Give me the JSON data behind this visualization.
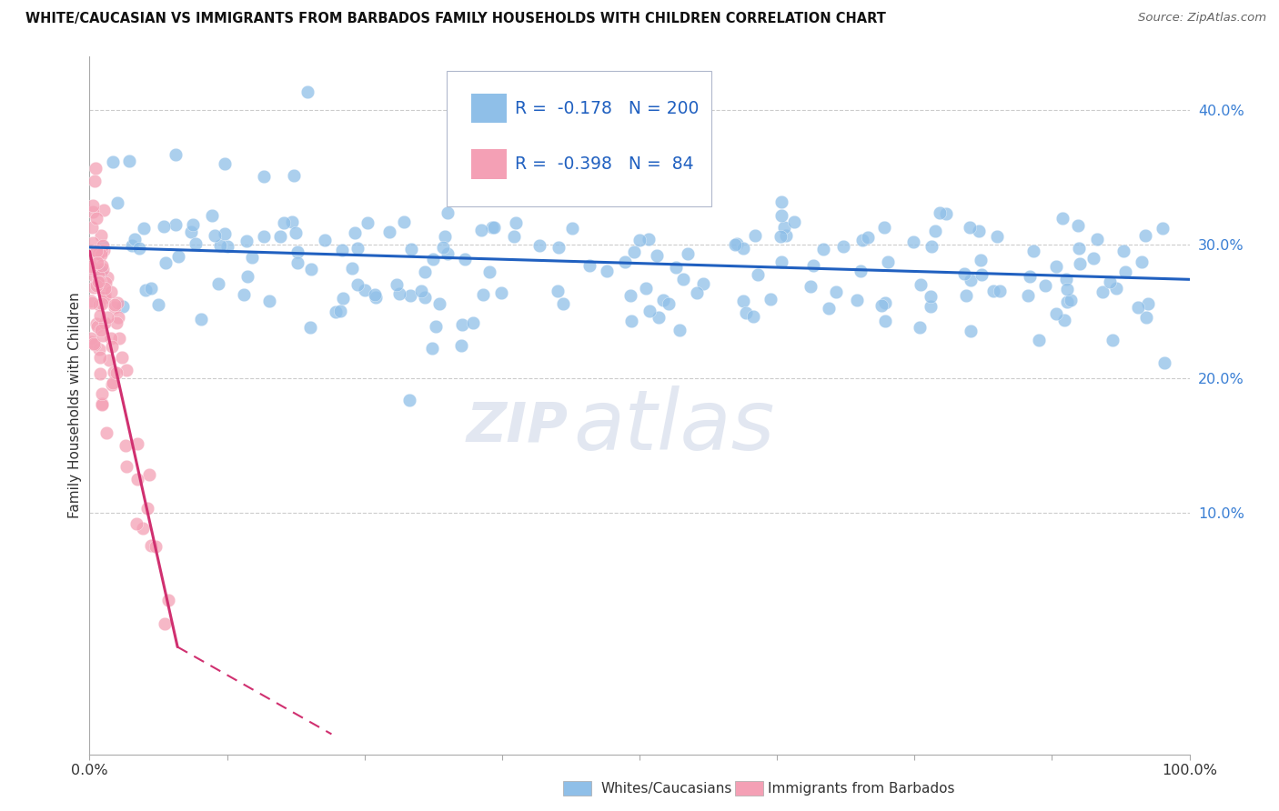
{
  "title": "WHITE/CAUCASIAN VS IMMIGRANTS FROM BARBADOS FAMILY HOUSEHOLDS WITH CHILDREN CORRELATION CHART",
  "source": "Source: ZipAtlas.com",
  "ylabel": "Family Households with Children",
  "watermark_zip": "ZIP",
  "watermark_atlas": "atlas",
  "legend_blue_r": "-0.178",
  "legend_blue_n": "200",
  "legend_pink_r": "-0.398",
  "legend_pink_n": "84",
  "legend_label_blue": "Whites/Caucasians",
  "legend_label_pink": "Immigrants from Barbados",
  "blue_color": "#8fbfe8",
  "pink_color": "#f4a0b5",
  "trend_blue_color": "#2060c0",
  "trend_pink_color": "#d03070",
  "xlim": [
    0.0,
    1.0
  ],
  "ylim": [
    -0.08,
    0.44
  ],
  "ytick_vals": [
    0.1,
    0.2,
    0.3,
    0.4
  ],
  "ytick_labels": [
    "10.0%",
    "20.0%",
    "30.0%",
    "40.0%"
  ],
  "xtick_vals": [
    0.0,
    0.125,
    0.25,
    0.375,
    0.5,
    0.625,
    0.75,
    0.875,
    1.0
  ],
  "xtick_labels": [
    "0.0%",
    "",
    "",
    "",
    "",
    "",
    "",
    "",
    "100.0%"
  ],
  "blue_trend_x0": 0.0,
  "blue_trend_y0": 0.298,
  "blue_trend_x1": 1.0,
  "blue_trend_y1": 0.274,
  "pink_trend_solid_x0": 0.0,
  "pink_trend_solid_y0": 0.295,
  "pink_trend_solid_x1": 0.08,
  "pink_trend_solid_y1": 0.0,
  "pink_trend_dashed_x0": 0.08,
  "pink_trend_dashed_y0": 0.0,
  "pink_trend_dashed_x1": 0.22,
  "pink_trend_dashed_y1": -0.065,
  "blue_seed": 42,
  "pink_seed": 7
}
